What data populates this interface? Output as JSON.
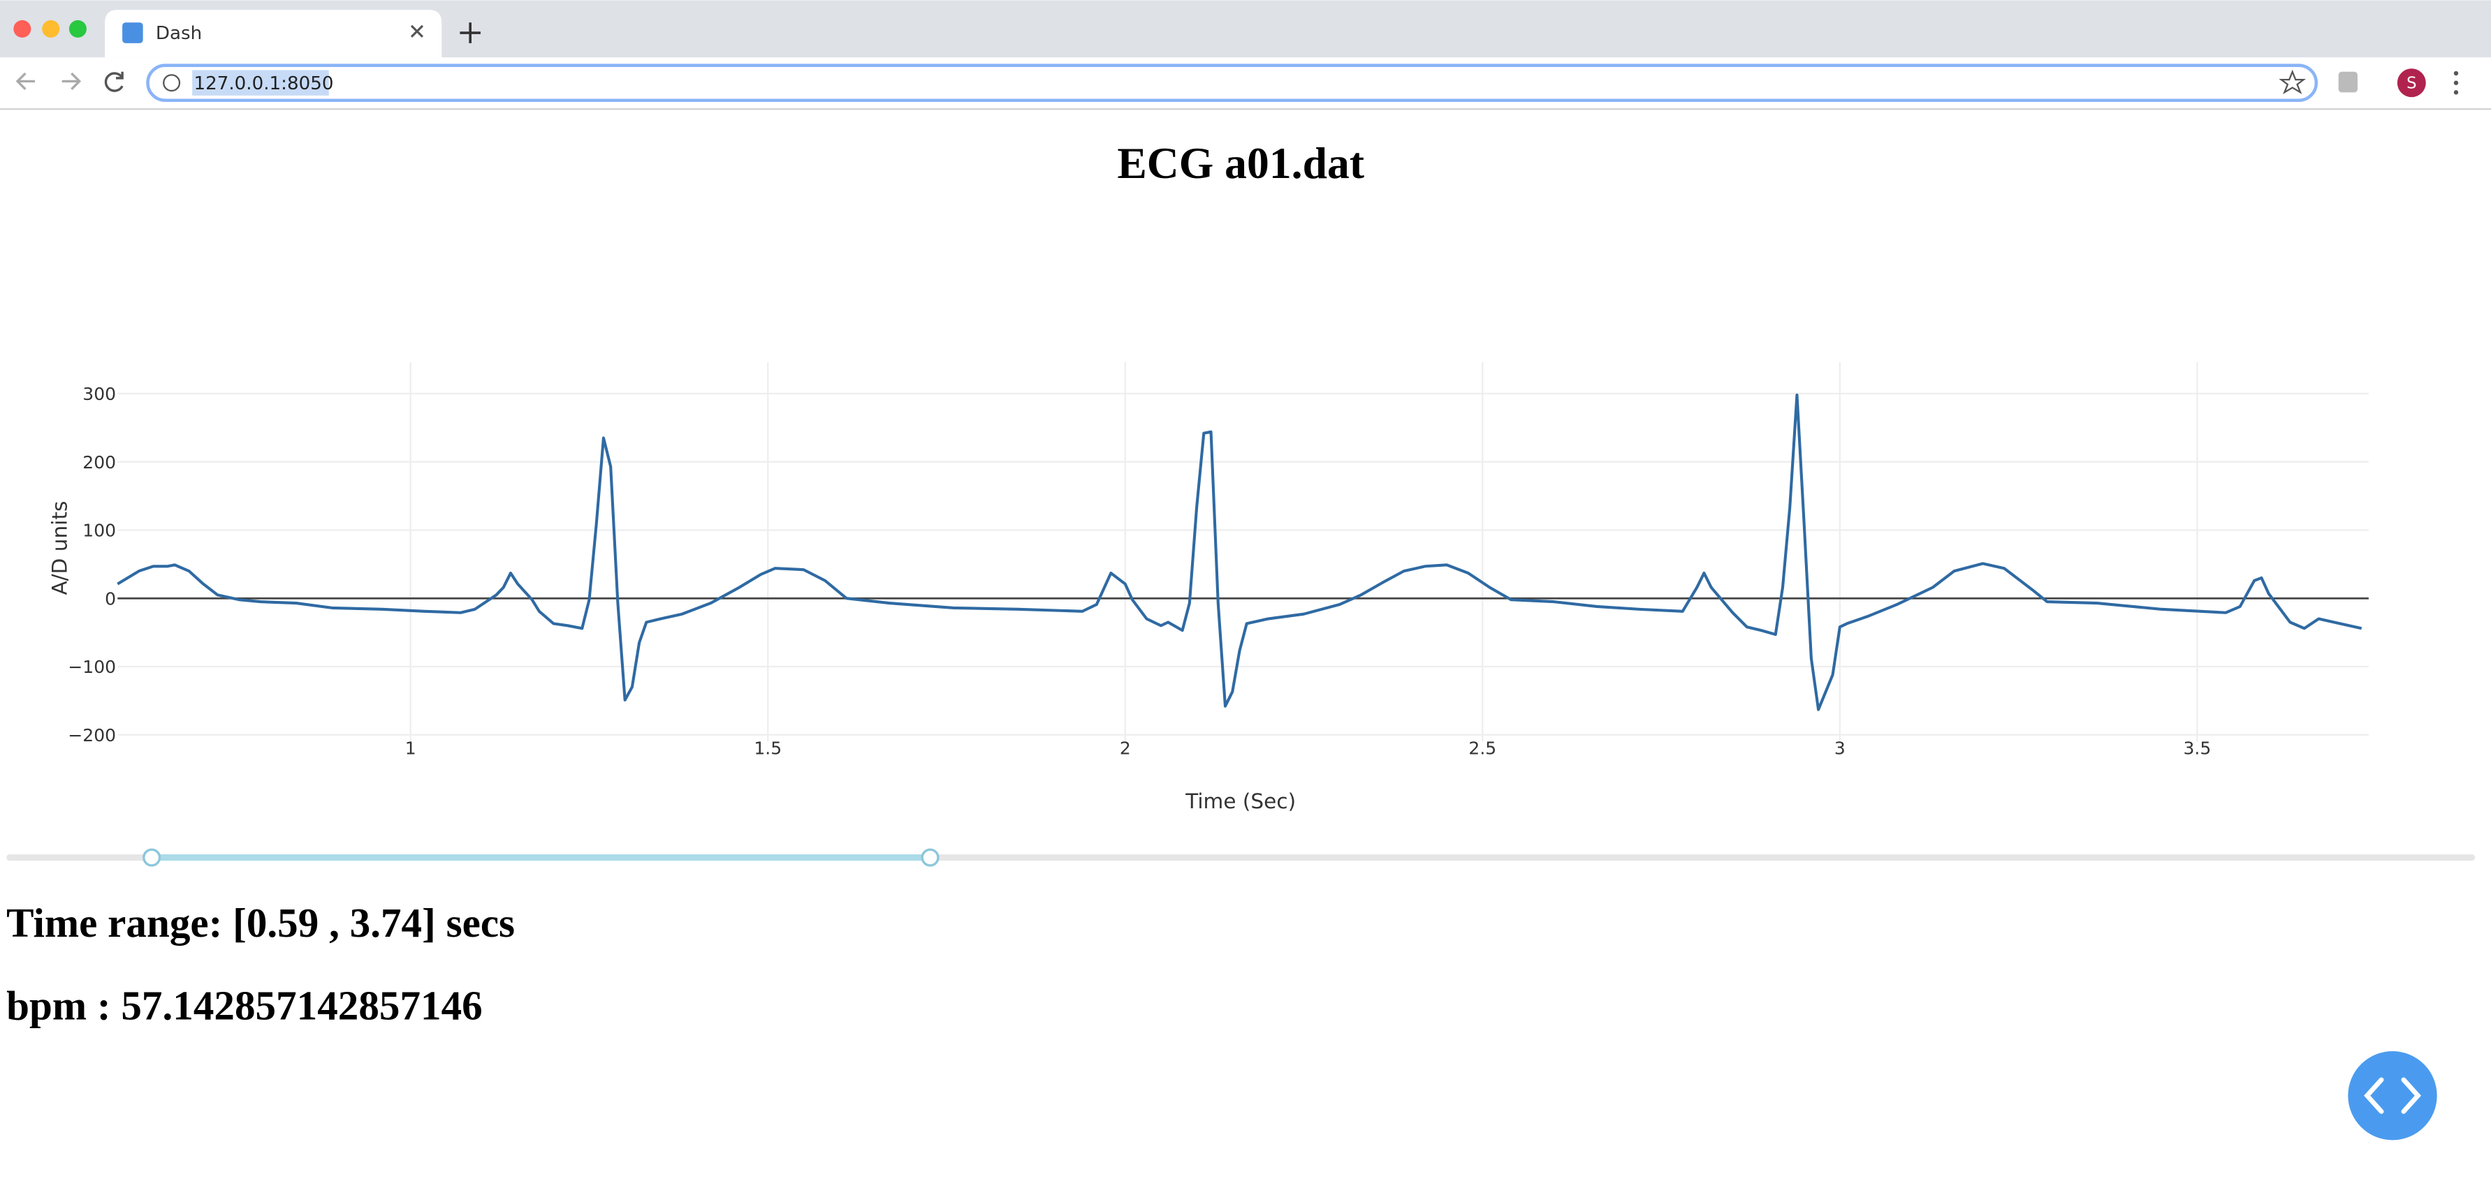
{
  "browser": {
    "tab_title": "Dash",
    "url": "127.0.0.1:8050",
    "profile": "S"
  },
  "chart_data": {
    "type": "line",
    "title": "ECG a01.dat",
    "x_label": "Time (Sec)",
    "y_label": "A/D units",
    "color": "#2f6aa3",
    "x": [
      0.59,
      0.62,
      0.64,
      0.66,
      0.67,
      0.69,
      0.71,
      0.73,
      0.76,
      0.79,
      0.84,
      0.89,
      0.96,
      1.02,
      1.07,
      1.09,
      1.12,
      1.13,
      1.14,
      1.15,
      1.17,
      1.18,
      1.2,
      1.22,
      1.24,
      1.25,
      1.26,
      1.27,
      1.28,
      1.29,
      1.3,
      1.31,
      1.32,
      1.33,
      1.35,
      1.38,
      1.42,
      1.46,
      1.49,
      1.51,
      1.55,
      1.58,
      1.61,
      1.67,
      1.76,
      1.85,
      1.94,
      1.96,
      1.98,
      2.0,
      2.01,
      2.03,
      2.05,
      2.06,
      2.08,
      2.09,
      2.1,
      2.11,
      2.12,
      2.13,
      2.14,
      2.15,
      2.16,
      2.17,
      2.2,
      2.25,
      2.3,
      2.33,
      2.36,
      2.39,
      2.42,
      2.45,
      2.48,
      2.51,
      2.54,
      2.6,
      2.66,
      2.72,
      2.78,
      2.8,
      2.81,
      2.82,
      2.85,
      2.87,
      2.89,
      2.91,
      2.92,
      2.93,
      2.94,
      2.95,
      2.96,
      2.97,
      2.99,
      3.0,
      3.01,
      3.04,
      3.08,
      3.13,
      3.16,
      3.2,
      3.23,
      3.27,
      3.29,
      3.36,
      3.45,
      3.54,
      3.56,
      3.58,
      3.59,
      3.6,
      3.63,
      3.65,
      3.67,
      3.73
    ],
    "values": [
      21,
      40,
      47,
      47,
      49,
      40,
      21,
      5,
      -2,
      -5,
      -7,
      -14,
      -16,
      -19,
      -21,
      -16,
      5,
      16,
      37,
      21,
      -2,
      -19,
      -37,
      -40,
      -44,
      -2,
      109,
      235,
      193,
      -7,
      -149,
      -130,
      -65,
      -35,
      -30,
      -23,
      -7,
      16,
      35,
      44,
      42,
      26,
      0,
      -7,
      -14,
      -16,
      -19,
      -9,
      37,
      21,
      -2,
      -30,
      -40,
      -35,
      -47,
      -7,
      133,
      242,
      244,
      -7,
      -158,
      -137,
      -77,
      -37,
      -30,
      -23,
      -9,
      5,
      23,
      40,
      47,
      49,
      37,
      16,
      -2,
      -5,
      -12,
      -16,
      -19,
      16,
      37,
      16,
      -21,
      -42,
      -47,
      -53,
      16,
      133,
      298,
      109,
      -88,
      -163,
      -112,
      -42,
      -37,
      -26,
      -9,
      16,
      40,
      51,
      44,
      12,
      -5,
      -7,
      -16,
      -21,
      -12,
      26,
      30,
      7,
      -35,
      -44,
      -30,
      -44
    ],
    "xlim": [
      0.59,
      3.74
    ],
    "ylim": [
      -210,
      346
    ],
    "xticks": [
      1,
      1.5,
      2,
      2.5,
      3,
      3.5
    ],
    "yticks": [
      {
        "value": -200,
        "label": "−200"
      },
      {
        "value": -100,
        "label": "−100"
      },
      0,
      100,
      200,
      300
    ],
    "grid": true
  },
  "time_range": "Time range: [0.59 , 3.74] secs",
  "bpm": "bpm : 57.142857142857146"
}
